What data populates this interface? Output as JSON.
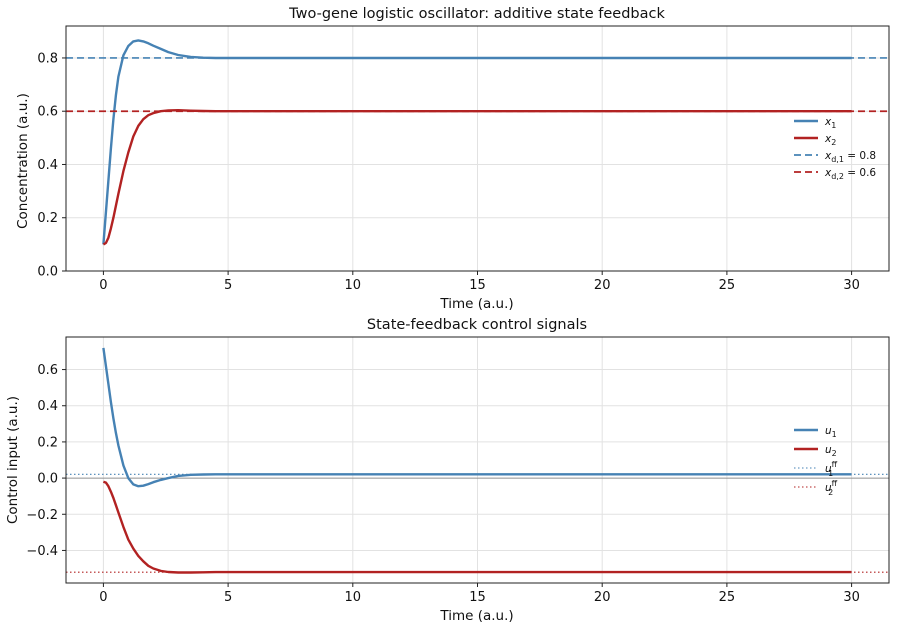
{
  "chart_data": [
    {
      "type": "line",
      "title": "Two-gene logistic oscillator: additive state feedback",
      "xlabel": "Time (a.u.)",
      "ylabel": "Concentration (a.u.)",
      "xlim": [
        -1.5,
        31.5
      ],
      "ylim": [
        0.0,
        0.92
      ],
      "xticks": [
        0,
        5,
        10,
        15,
        20,
        25,
        30
      ],
      "yticks": [
        0.0,
        0.2,
        0.4,
        0.6,
        0.8
      ],
      "ytick_labels": [
        "0.0",
        "0.2",
        "0.4",
        "0.6",
        "0.8"
      ],
      "grid": true,
      "legend_position": "center-right",
      "series": [
        {
          "name": "x₁",
          "sub": "1",
          "color": "#4682b4",
          "style": "solid",
          "x": [
            0,
            0.1,
            0.2,
            0.3,
            0.4,
            0.5,
            0.6,
            0.8,
            1.0,
            1.2,
            1.4,
            1.6,
            1.8,
            2.0,
            2.3,
            2.6,
            3.0,
            3.5,
            4.0,
            4.5,
            5,
            6,
            10,
            15,
            20,
            25,
            30
          ],
          "y": [
            0.1,
            0.22,
            0.34,
            0.46,
            0.57,
            0.66,
            0.73,
            0.81,
            0.845,
            0.862,
            0.866,
            0.862,
            0.855,
            0.846,
            0.834,
            0.822,
            0.811,
            0.804,
            0.801,
            0.8,
            0.8,
            0.8,
            0.8,
            0.8,
            0.8,
            0.8,
            0.8
          ]
        },
        {
          "name": "x₂",
          "sub": "2",
          "color": "#b22222",
          "style": "solid",
          "x": [
            0,
            0.1,
            0.2,
            0.3,
            0.4,
            0.5,
            0.6,
            0.8,
            1.0,
            1.2,
            1.4,
            1.6,
            1.8,
            2.0,
            2.3,
            2.6,
            3.0,
            3.5,
            4.0,
            4.5,
            5,
            6,
            10,
            15,
            20,
            25,
            30
          ],
          "y": [
            0.1,
            0.105,
            0.125,
            0.16,
            0.2,
            0.245,
            0.29,
            0.375,
            0.445,
            0.505,
            0.545,
            0.57,
            0.585,
            0.593,
            0.6,
            0.603,
            0.604,
            0.602,
            0.601,
            0.6,
            0.6,
            0.6,
            0.6,
            0.6,
            0.6,
            0.6,
            0.6
          ]
        },
        {
          "name": "x_d,1 = 0.8",
          "sub": "d,1",
          "suffix": " = 0.8",
          "color": "#4682b4",
          "style": "dashed",
          "hline": 0.8
        },
        {
          "name": "x_d,2 = 0.6",
          "sub": "d,2",
          "suffix": " = 0.6",
          "color": "#b22222",
          "style": "dashed",
          "hline": 0.6
        }
      ]
    },
    {
      "type": "line",
      "title": "State-feedback control signals",
      "xlabel": "Time (a.u.)",
      "ylabel": "Control input (a.u.)",
      "xlim": [
        -1.5,
        31.5
      ],
      "ylim": [
        -0.58,
        0.78
      ],
      "xticks": [
        0,
        5,
        10,
        15,
        20,
        25,
        30
      ],
      "yticks": [
        -0.4,
        -0.2,
        0.0,
        0.2,
        0.4,
        0.6
      ],
      "ytick_labels": [
        "−0.4",
        "−0.2",
        "0.0",
        "0.2",
        "0.4",
        "0.6"
      ],
      "grid": true,
      "zero_line": true,
      "legend_position": "center-right",
      "series": [
        {
          "name": "u₁",
          "sub": "1",
          "color": "#4682b4",
          "style": "solid",
          "x": [
            0,
            0.1,
            0.2,
            0.3,
            0.4,
            0.5,
            0.6,
            0.8,
            1.0,
            1.2,
            1.4,
            1.6,
            1.8,
            2.0,
            2.3,
            2.6,
            3.0,
            3.5,
            4.0,
            4.5,
            5,
            6,
            10,
            15,
            20,
            25,
            30
          ],
          "y": [
            0.72,
            0.62,
            0.52,
            0.42,
            0.33,
            0.25,
            0.18,
            0.07,
            0.0,
            -0.035,
            -0.045,
            -0.042,
            -0.033,
            -0.023,
            -0.01,
            0.0,
            0.012,
            0.018,
            0.02,
            0.021,
            0.021,
            0.021,
            0.021,
            0.021,
            0.021,
            0.021,
            0.021
          ]
        },
        {
          "name": "u₂",
          "sub": "2",
          "color": "#b22222",
          "style": "solid",
          "x": [
            0,
            0.1,
            0.2,
            0.3,
            0.4,
            0.5,
            0.6,
            0.8,
            1.0,
            1.2,
            1.4,
            1.6,
            1.8,
            2.0,
            2.3,
            2.6,
            3.0,
            3.5,
            4.0,
            4.5,
            5,
            6,
            10,
            15,
            20,
            25,
            30
          ],
          "y": [
            -0.02,
            -0.025,
            -0.045,
            -0.075,
            -0.11,
            -0.15,
            -0.19,
            -0.27,
            -0.34,
            -0.39,
            -0.43,
            -0.46,
            -0.485,
            -0.5,
            -0.513,
            -0.519,
            -0.522,
            -0.522,
            -0.521,
            -0.52,
            -0.52,
            -0.52,
            -0.52,
            -0.52,
            -0.52,
            -0.52,
            -0.52
          ]
        },
        {
          "name": "u₁ff",
          "sub": "1",
          "sup": "ff",
          "color": "#4682b4",
          "style": "dotted",
          "hline": 0.021
        },
        {
          "name": "u₂ff",
          "sub": "2",
          "sup": "ff",
          "color": "#b22222",
          "style": "dotted",
          "hline": -0.52
        }
      ]
    }
  ]
}
